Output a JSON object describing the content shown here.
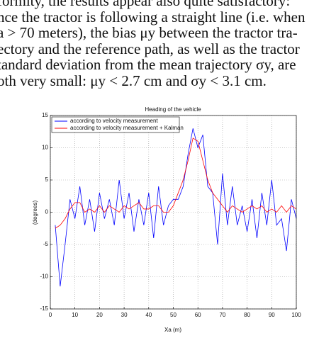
{
  "text": {
    "lines": [
      "formity, the results appear also quite satisfactory:",
      "nce the tractor is following a straight line (i.e. when",
      "a > 70 meters), the bias μy between the tractor tra-",
      "ectory and the reference path, as well as the tractor",
      "tandard deviation from the mean trajectory σy, are",
      "oth very small: μy < 2.7 cm and σy < 3.1 cm."
    ]
  },
  "chart_data": {
    "type": "line",
    "title": "Heading of the vehicle",
    "x_label": "Xa (m)",
    "y_label": "(degrees)",
    "x": [
      2,
      4,
      6,
      8,
      10,
      12,
      14,
      16,
      18,
      20,
      22,
      24,
      26,
      28,
      30,
      32,
      34,
      36,
      38,
      40,
      42,
      44,
      46,
      48,
      50,
      52,
      54,
      56,
      58,
      60,
      62,
      64,
      66,
      68,
      70,
      72,
      74,
      76,
      78,
      80,
      82,
      84,
      86,
      88,
      90,
      92,
      94,
      96,
      98,
      100
    ],
    "series": [
      {
        "name": "according to velocity measurement",
        "color": "#0000ff",
        "values": [
          -2,
          -11.5,
          -5,
          2,
          -1,
          4,
          -2,
          2,
          -3,
          3,
          -1,
          2,
          -2,
          5,
          -1,
          3,
          -3,
          2,
          -2,
          3,
          -4,
          4,
          -2,
          1,
          2,
          2,
          4,
          9,
          13,
          10,
          12,
          4,
          3,
          -5,
          6,
          -2,
          4,
          -2,
          1,
          -3,
          2,
          -4,
          3,
          -2,
          5,
          -2,
          -1,
          -6,
          2,
          -1
        ]
      },
      {
        "name": "according to velocity measurement + Kalman",
        "color": "#ff0000",
        "values": [
          -2.5,
          -2,
          -1,
          0.5,
          1.5,
          1.5,
          0,
          0.5,
          0,
          1,
          0,
          1,
          0.5,
          0,
          1,
          0.5,
          1,
          1.5,
          0.5,
          0.5,
          1,
          1,
          0,
          0,
          1,
          3,
          5,
          8,
          11.5,
          11,
          8,
          5,
          3,
          2,
          1,
          0,
          1,
          0.5,
          0,
          0.5,
          1,
          0.5,
          1,
          0,
          0.5,
          0,
          1,
          0,
          1,
          0.5
        ]
      }
    ],
    "xlim": [
      0,
      100
    ],
    "xticks": [
      0,
      10,
      20,
      30,
      40,
      50,
      60,
      70,
      80,
      90,
      100
    ],
    "ylim": [
      -15,
      15
    ],
    "yticks": [
      -15,
      -10,
      -5,
      0,
      5,
      10,
      15
    ],
    "grid": true,
    "legend": "upper-left"
  }
}
